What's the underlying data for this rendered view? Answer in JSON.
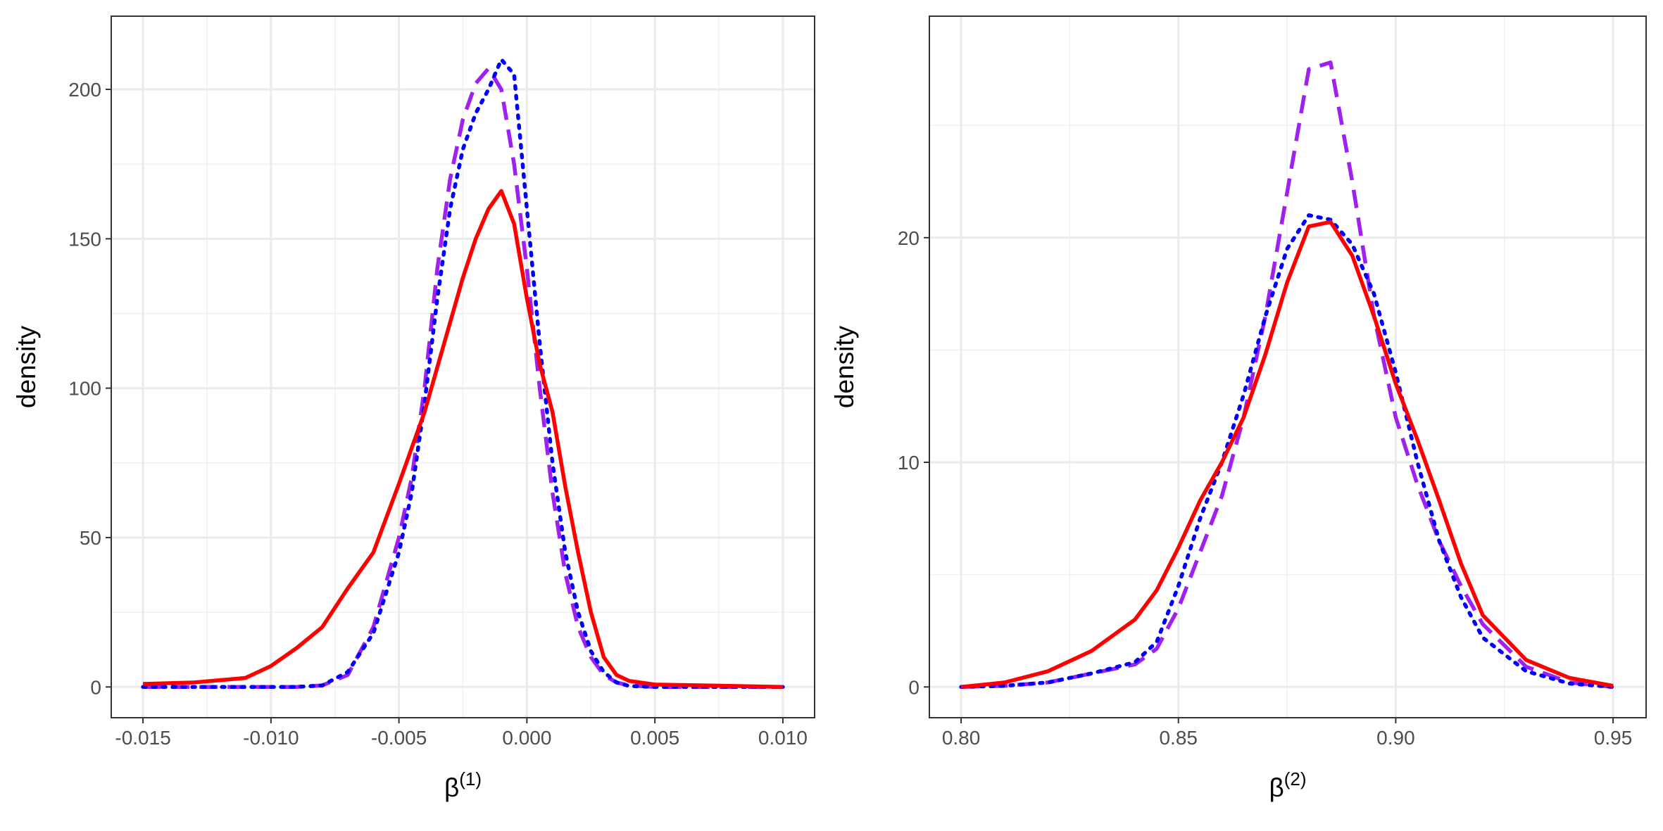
{
  "chart_data": [
    {
      "type": "line",
      "xlabel": "β",
      "xlabel_sup": "(1)",
      "ylabel": "density",
      "xlim": [
        -0.01624,
        0.01124
      ],
      "ylim": [
        -10.3,
        224.5
      ],
      "xticks": [
        {
          "value": -0.015,
          "label": "-0.015"
        },
        {
          "value": -0.01,
          "label": "-0.010"
        },
        {
          "value": -0.005,
          "label": "-0.005"
        },
        {
          "value": 0,
          "label": "0.000"
        },
        {
          "value": 0.005,
          "label": "0.005"
        },
        {
          "value": 0.01,
          "label": "0.010"
        }
      ],
      "yticks": [
        0,
        50,
        100,
        150,
        200
      ],
      "grid": true,
      "x": [
        -0.015,
        -0.013,
        -0.011,
        -0.01,
        -0.009,
        -0.008,
        -0.007,
        -0.006,
        -0.005,
        -0.0045,
        -0.004,
        -0.0035,
        -0.003,
        -0.0025,
        -0.002,
        -0.0015,
        -0.001,
        -0.0005,
        0,
        0.0005,
        0.001,
        0.0015,
        0.002,
        0.0025,
        0.003,
        0.0035,
        0.004,
        0.005,
        0.007,
        0.01
      ],
      "series": [
        {
          "color": "#a020f0",
          "dash": "dash",
          "values": [
            0,
            0,
            0,
            0,
            0,
            0.5,
            4,
            20,
            50,
            70,
            100,
            140,
            170,
            190,
            202,
            207,
            200,
            175,
            140,
            100,
            65,
            38,
            20,
            10,
            4,
            1.5,
            0.5,
            0,
            0,
            0
          ]
        },
        {
          "color": "#0000ff",
          "dash": "dot",
          "values": [
            0,
            0,
            0,
            0,
            0,
            0.5,
            5,
            18,
            45,
            65,
            95,
            130,
            160,
            180,
            192,
            200,
            210,
            205,
            160,
            115,
            75,
            45,
            25,
            12,
            5,
            1.5,
            0.3,
            0,
            0,
            0
          ]
        },
        {
          "color": "#ff0000",
          "dash": "solid",
          "values": [
            1,
            1.5,
            3,
            7,
            13,
            20,
            33,
            45,
            68,
            80,
            92,
            107,
            122,
            137,
            150,
            160,
            166,
            155,
            130,
            108,
            92,
            67,
            45,
            25,
            10,
            4,
            2,
            0.8,
            0.5,
            0
          ]
        }
      ]
    },
    {
      "type": "line",
      "xlabel": "β",
      "xlabel_sup": "(2)",
      "ylabel": "density",
      "xlim": [
        0.7927,
        0.9576
      ],
      "ylim": [
        -1.37,
        29.86
      ],
      "xticks": [
        {
          "value": 0.8,
          "label": "0.80"
        },
        {
          "value": 0.85,
          "label": "0.85"
        },
        {
          "value": 0.9,
          "label": "0.90"
        },
        {
          "value": 0.95,
          "label": "0.95"
        }
      ],
      "yticks": [
        0,
        10,
        20
      ],
      "grid": true,
      "x": [
        0.8,
        0.81,
        0.82,
        0.83,
        0.84,
        0.845,
        0.85,
        0.855,
        0.86,
        0.865,
        0.87,
        0.875,
        0.88,
        0.885,
        0.89,
        0.895,
        0.9,
        0.905,
        0.91,
        0.915,
        0.92,
        0.93,
        0.94,
        0.95
      ],
      "series": [
        {
          "color": "#a020f0",
          "dash": "dash",
          "values": [
            0,
            0.05,
            0.2,
            0.6,
            1.0,
            1.7,
            3.5,
            6,
            8.5,
            12,
            16.5,
            22,
            27.5,
            27.8,
            22.5,
            16.5,
            12,
            9,
            6.5,
            4.5,
            2.8,
            0.9,
            0.2,
            0
          ]
        },
        {
          "color": "#0000ff",
          "dash": "dot",
          "values": [
            0,
            0.05,
            0.2,
            0.6,
            1.1,
            2,
            4.5,
            7.5,
            10,
            13,
            16.5,
            19.5,
            21,
            20.8,
            19.7,
            17.5,
            14,
            10,
            6.5,
            4,
            2.2,
            0.7,
            0.15,
            0
          ]
        },
        {
          "color": "#ff0000",
          "dash": "solid",
          "values": [
            0,
            0.2,
            0.7,
            1.6,
            3,
            4.3,
            6.2,
            8.3,
            10,
            12,
            14.8,
            18,
            20.5,
            20.7,
            19.2,
            16.5,
            13.5,
            11,
            8.3,
            5.5,
            3.2,
            1.2,
            0.4,
            0.05
          ]
        }
      ]
    }
  ]
}
